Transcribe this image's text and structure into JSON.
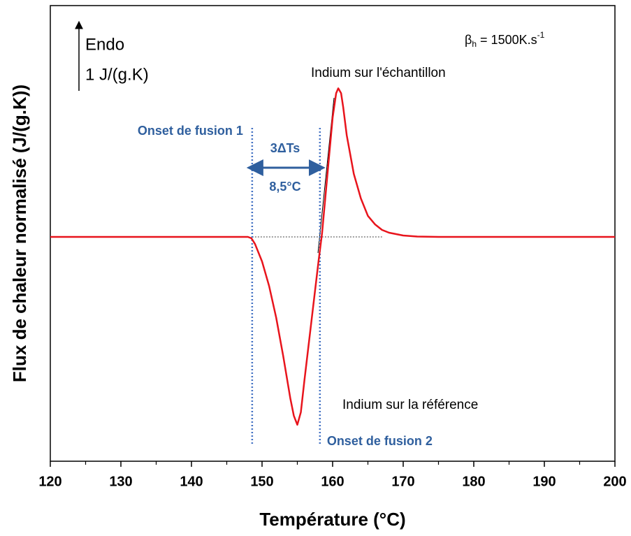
{
  "chart_data": {
    "type": "line",
    "xlabel": "Température (°C)",
    "ylabel": "Flux de chaleur normalisé (J/(g.K))",
    "xlim": [
      120,
      200
    ],
    "xticks": [
      120,
      130,
      140,
      150,
      160,
      170,
      180,
      190,
      200
    ],
    "xminorticks": [
      125,
      135,
      145,
      155,
      165,
      175,
      185,
      195
    ],
    "ylim": [
      -3.2,
      3.3
    ],
    "x": [
      120,
      148,
      148.5,
      149,
      150,
      151,
      152,
      153,
      154,
      154.5,
      155,
      155.5,
      156,
      157,
      158,
      158.5,
      159,
      159.5,
      160,
      160.5,
      160.8,
      161.2,
      161.5,
      162,
      163,
      164,
      165,
      166,
      167,
      168,
      170,
      172,
      175,
      200
    ],
    "series": [
      {
        "color": "#e8141c",
        "values": [
          0,
          0,
          -0.02,
          -0.1,
          -0.35,
          -0.7,
          -1.15,
          -1.7,
          -2.3,
          -2.55,
          -2.68,
          -2.5,
          -2.05,
          -1.2,
          -0.35,
          0.05,
          0.6,
          1.15,
          1.7,
          2.05,
          2.12,
          2.05,
          1.85,
          1.45,
          0.9,
          0.55,
          0.3,
          0.18,
          0.1,
          0.06,
          0.02,
          0.005,
          0,
          0
        ]
      }
    ],
    "scale_bar": {
      "direction": "Endo",
      "label": "1 J/(g.K)",
      "value": 1
    },
    "heating_rate": {
      "symbol": "β",
      "subscript": "h",
      "text": " = 1500K.s",
      "superscript": "-1"
    },
    "onsets": [
      {
        "label": "Onset de fusion 1",
        "x": 148.6
      },
      {
        "label": "Onset de fusion 2",
        "x": 158.2
      }
    ],
    "interval": {
      "label": "3ΔTs",
      "value_label": "8,5°C"
    },
    "annotations": [
      "Indium sur l'échantillon",
      "Indium sur la référence"
    ]
  }
}
